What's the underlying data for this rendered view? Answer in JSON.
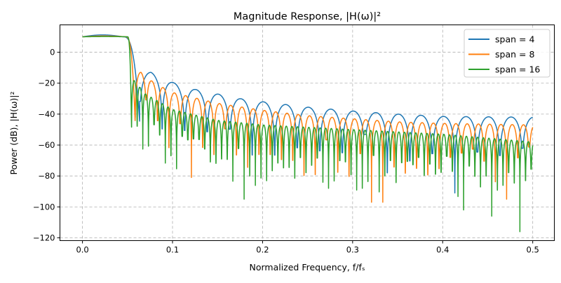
{
  "chart_data": {
    "type": "line",
    "title": "Magnitude Response, |H(ω)|²",
    "xlabel": "Normalized Frequency, f/fₛ",
    "ylabel": "Power (dB), |H(ω)|²",
    "xlim": [
      -0.025,
      0.524
    ],
    "ylim": [
      -121.8,
      17.7
    ],
    "xticks": [
      "0.0",
      "0.1",
      "0.2",
      "0.3",
      "0.4",
      "0.5"
    ],
    "yticks": [
      "0",
      "−20",
      "−40",
      "−60",
      "−80",
      "−100",
      "−120"
    ],
    "grid": true,
    "legend_position": "top-right",
    "series": [
      {
        "name": "span = 4",
        "color": "#1f77b4",
        "passband_db": 10,
        "sidelobe_spacing": 0.025,
        "sidelobe_peaks": [
          [
            0.076,
            -13
          ],
          [
            0.1,
            -19.5
          ],
          [
            0.125,
            -24
          ],
          [
            0.15,
            -27
          ],
          [
            0.175,
            -30
          ],
          [
            0.2,
            -32
          ],
          [
            0.25,
            -35.5
          ],
          [
            0.3,
            -38
          ],
          [
            0.35,
            -40
          ],
          [
            0.4,
            -41.5
          ],
          [
            0.5,
            -42
          ]
        ],
        "deep_nulls": [
          [
            0.34,
            -78
          ],
          [
            0.418,
            -91
          ]
        ]
      },
      {
        "name": "span = 8",
        "color": "#ff7f0e",
        "passband_db": 10,
        "sidelobe_spacing": 0.0125,
        "sidelobe_peaks": [
          [
            0.065,
            -13
          ],
          [
            0.08,
            -20
          ],
          [
            0.1,
            -26
          ],
          [
            0.15,
            -33
          ],
          [
            0.2,
            -37.5
          ],
          [
            0.25,
            -41
          ],
          [
            0.3,
            -43
          ],
          [
            0.35,
            -45
          ],
          [
            0.4,
            -46
          ],
          [
            0.5,
            -47
          ]
        ],
        "deep_nulls": [
          [
            0.118,
            -81
          ],
          [
            0.327,
            -97
          ],
          [
            0.47,
            -95
          ]
        ]
      },
      {
        "name": "span = 16",
        "color": "#2ca02c",
        "passband_db": 10,
        "sidelobe_spacing": 0.00625,
        "sidelobe_peaks": [
          [
            0.057,
            -18
          ],
          [
            0.07,
            -27
          ],
          [
            0.1,
            -37
          ],
          [
            0.15,
            -44
          ],
          [
            0.2,
            -47
          ],
          [
            0.3,
            -50
          ],
          [
            0.4,
            -53
          ],
          [
            0.5,
            -58
          ]
        ],
        "deep_nulls": [
          [
            0.177,
            -95
          ],
          [
            0.275,
            -88
          ],
          [
            0.422,
            -102
          ],
          [
            0.455,
            -106
          ],
          [
            0.485,
            -116
          ]
        ]
      }
    ]
  }
}
